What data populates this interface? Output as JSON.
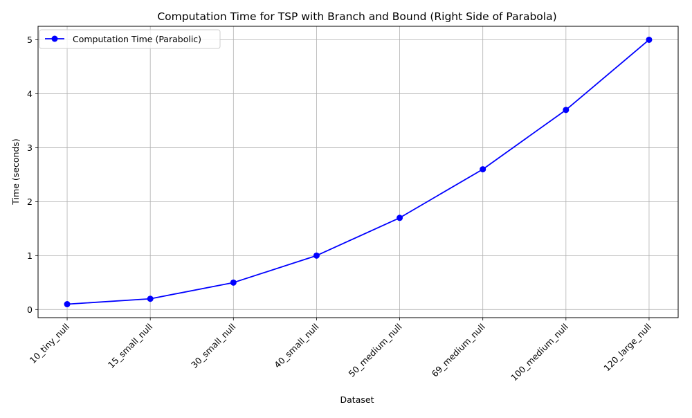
{
  "chart_data": {
    "type": "line",
    "title": "Computation Time for TSP with Branch and Bound (Right Side of Parabola)",
    "xlabel": "Dataset",
    "ylabel": "Time (seconds)",
    "categories": [
      "10_tiny_null",
      "15_small_null",
      "30_small_null",
      "40_small_null",
      "50_medium_null",
      "69_medium_null",
      "100_medium_null",
      "120_large_null"
    ],
    "series": [
      {
        "name": "Computation Time (Parabolic)",
        "values": [
          0.1,
          0.2,
          0.5,
          1.0,
          1.7,
          2.6,
          3.7,
          5.0
        ],
        "color": "#0000ff",
        "marker": "circle"
      }
    ],
    "ylim": [
      -0.15,
      5.25
    ],
    "yticks": [
      "0",
      "1",
      "2",
      "3",
      "4",
      "5"
    ],
    "grid": true,
    "legend_position": "top-left"
  }
}
